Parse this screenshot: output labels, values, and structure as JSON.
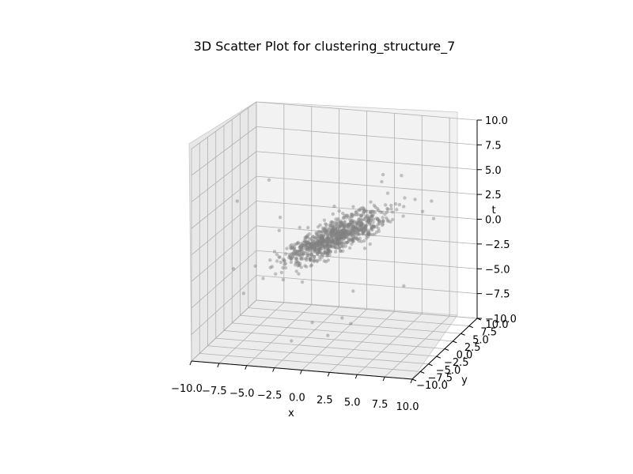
{
  "chart_data": {
    "type": "scatter",
    "title": "3D Scatter Plot for clustering_structure_7",
    "xlabel": "x",
    "ylabel": "y",
    "zlabel": "t",
    "xlim": [
      -10,
      10
    ],
    "ylim": [
      -10,
      10
    ],
    "zlim": [
      -10,
      10
    ],
    "x_ticks": [
      "−10.0",
      "−7.5",
      "−5.0",
      "−2.5",
      "0.0",
      "2.5",
      "5.0",
      "7.5",
      "10.0"
    ],
    "y_ticks": [
      "−10.0",
      "−7.5",
      "−5.0",
      "−2.5",
      "0.0",
      "2.5",
      "5.0",
      "7.5",
      "10.0"
    ],
    "z_ticks": [
      "−10.0",
      "−7.5",
      "−5.0",
      "−2.5",
      "0.0",
      "2.5",
      "5.0",
      "7.5",
      "10.0"
    ],
    "grid": true,
    "marker_color": "#808080",
    "cluster": {
      "center": [
        0,
        0,
        0
      ],
      "count": 900,
      "spread": [
        2.2,
        2.2,
        1.4
      ],
      "correlation": 0.85
    },
    "outliers": [
      [
        -6.5,
        2,
        4.5
      ],
      [
        -8.5,
        -1,
        3
      ],
      [
        -5,
        0,
        0.2
      ],
      [
        -5.2,
        1,
        1.2
      ],
      [
        4,
        1,
        5.5
      ],
      [
        5.5,
        2,
        6
      ],
      [
        5,
        -2,
        7
      ],
      [
        8,
        0,
        3.2
      ],
      [
        9,
        0,
        2.6
      ],
      [
        -2,
        0,
        -8.5
      ],
      [
        0,
        -2,
        -9
      ],
      [
        1,
        -1,
        -7.5
      ],
      [
        1.5,
        0,
        -8.3
      ],
      [
        6,
        1,
        -4.5
      ],
      [
        2,
        -1,
        -4.8
      ],
      [
        0,
        0,
        3
      ],
      [
        -3,
        -3,
        -9.5
      ]
    ]
  }
}
